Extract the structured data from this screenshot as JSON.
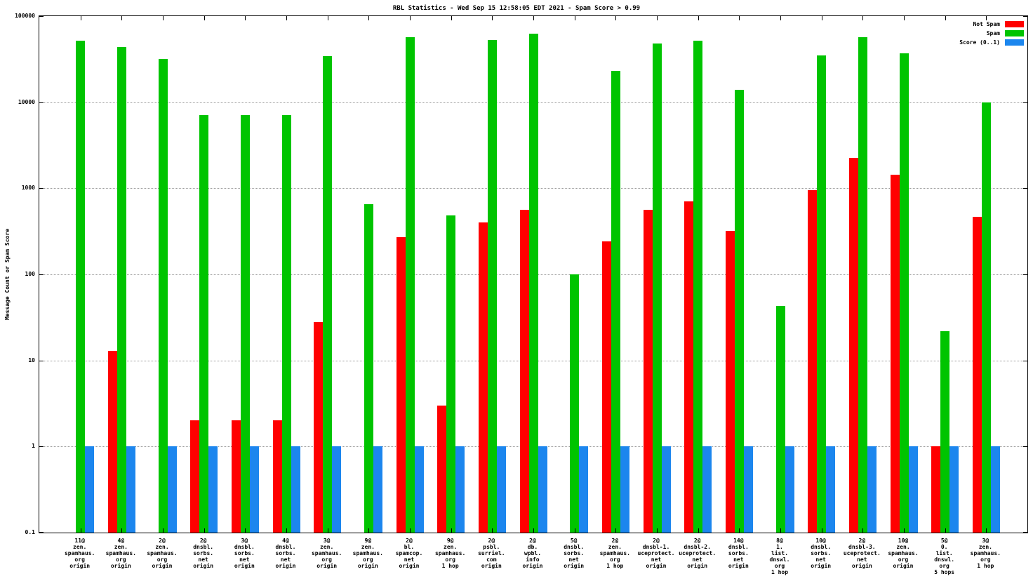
{
  "chart_data": {
    "type": "bar",
    "title": "RBL Statistics - Wed Sep 15 12:58:05 EDT 2021 - Spam Score > 0.99",
    "ylabel": "Message Count or Spam Score",
    "xlabel": "",
    "y_scale": "log",
    "ylim": [
      0.1,
      100000
    ],
    "y_ticks": [
      0.1,
      1,
      10,
      100,
      1000,
      10000,
      100000
    ],
    "grid": true,
    "legend_position": "top-right",
    "background_color": "#ffffff",
    "categories": [
      [
        "11@",
        "zen.",
        "spamhaus.",
        "org",
        "origin"
      ],
      [
        "4@",
        "zen.",
        "spamhaus.",
        "org",
        "origin"
      ],
      [
        "2@",
        "zen.",
        "spamhaus.",
        "org",
        "origin"
      ],
      [
        "2@",
        "dnsbl.",
        "sorbs.",
        "net",
        "origin"
      ],
      [
        "3@",
        "dnsbl.",
        "sorbs.",
        "net",
        "origin"
      ],
      [
        "4@",
        "dnsbl.",
        "sorbs.",
        "net",
        "origin"
      ],
      [
        "3@",
        "zen.",
        "spamhaus.",
        "org",
        "origin"
      ],
      [
        "9@",
        "zen.",
        "spamhaus.",
        "org",
        "origin"
      ],
      [
        "2@",
        "bl.",
        "spamcop.",
        "net",
        "origin"
      ],
      [
        "9@",
        "zen.",
        "spamhaus.",
        "org",
        "1 hop"
      ],
      [
        "2@",
        "psbl.",
        "surriel.",
        "com",
        "origin"
      ],
      [
        "2@",
        "db.",
        "wpbl.",
        "info",
        "origin"
      ],
      [
        "5@",
        "dnsbl.",
        "sorbs.",
        "net",
        "origin"
      ],
      [
        "2@",
        "zen.",
        "spamhaus.",
        "org",
        "1 hop"
      ],
      [
        "2@",
        "dnsbl-1.",
        "uceprotect.",
        "net",
        "origin"
      ],
      [
        "2@",
        "dnsbl-2.",
        "uceprotect.",
        "net",
        "origin"
      ],
      [
        "14@",
        "dnsbl.",
        "sorbs.",
        "net",
        "origin"
      ],
      [
        "8@",
        "1.",
        "list.",
        "dnswl.",
        "org",
        "1 hop"
      ],
      [
        "10@",
        "dnsbl.",
        "sorbs.",
        "net",
        "origin"
      ],
      [
        "2@",
        "dnsbl-3.",
        "uceprotect.",
        "net",
        "origin"
      ],
      [
        "10@",
        "zen.",
        "spamhaus.",
        "org",
        "origin"
      ],
      [
        "5@",
        "0.",
        "list.",
        "dnswl.",
        "org",
        "5 hops"
      ],
      [
        "3@",
        "zen.",
        "spamhaus.",
        "org",
        "1 hop"
      ]
    ],
    "series": [
      {
        "name": "Not Spam",
        "color": "#ff0000",
        "values": [
          0,
          13,
          0,
          2,
          2,
          2,
          28,
          0,
          270,
          3,
          400,
          560,
          0,
          240,
          560,
          700,
          320,
          0,
          950,
          2250,
          1450,
          1,
          470
        ]
      },
      {
        "name": "Spam",
        "color": "#00c400",
        "values": [
          52000,
          44000,
          32000,
          7100,
          7100,
          7100,
          34000,
          650,
          57000,
          480,
          53000,
          62000,
          100,
          23000,
          48000,
          52000,
          14000,
          43,
          35000,
          57000,
          37000,
          22,
          10000
        ]
      },
      {
        "name": "Score (0..1)",
        "color": "#1c86ee",
        "values": [
          1,
          1,
          1,
          1,
          1,
          1,
          1,
          1,
          1,
          1,
          1,
          1,
          1,
          1,
          1,
          1,
          1,
          1,
          1,
          1,
          1,
          1,
          1
        ]
      }
    ]
  }
}
